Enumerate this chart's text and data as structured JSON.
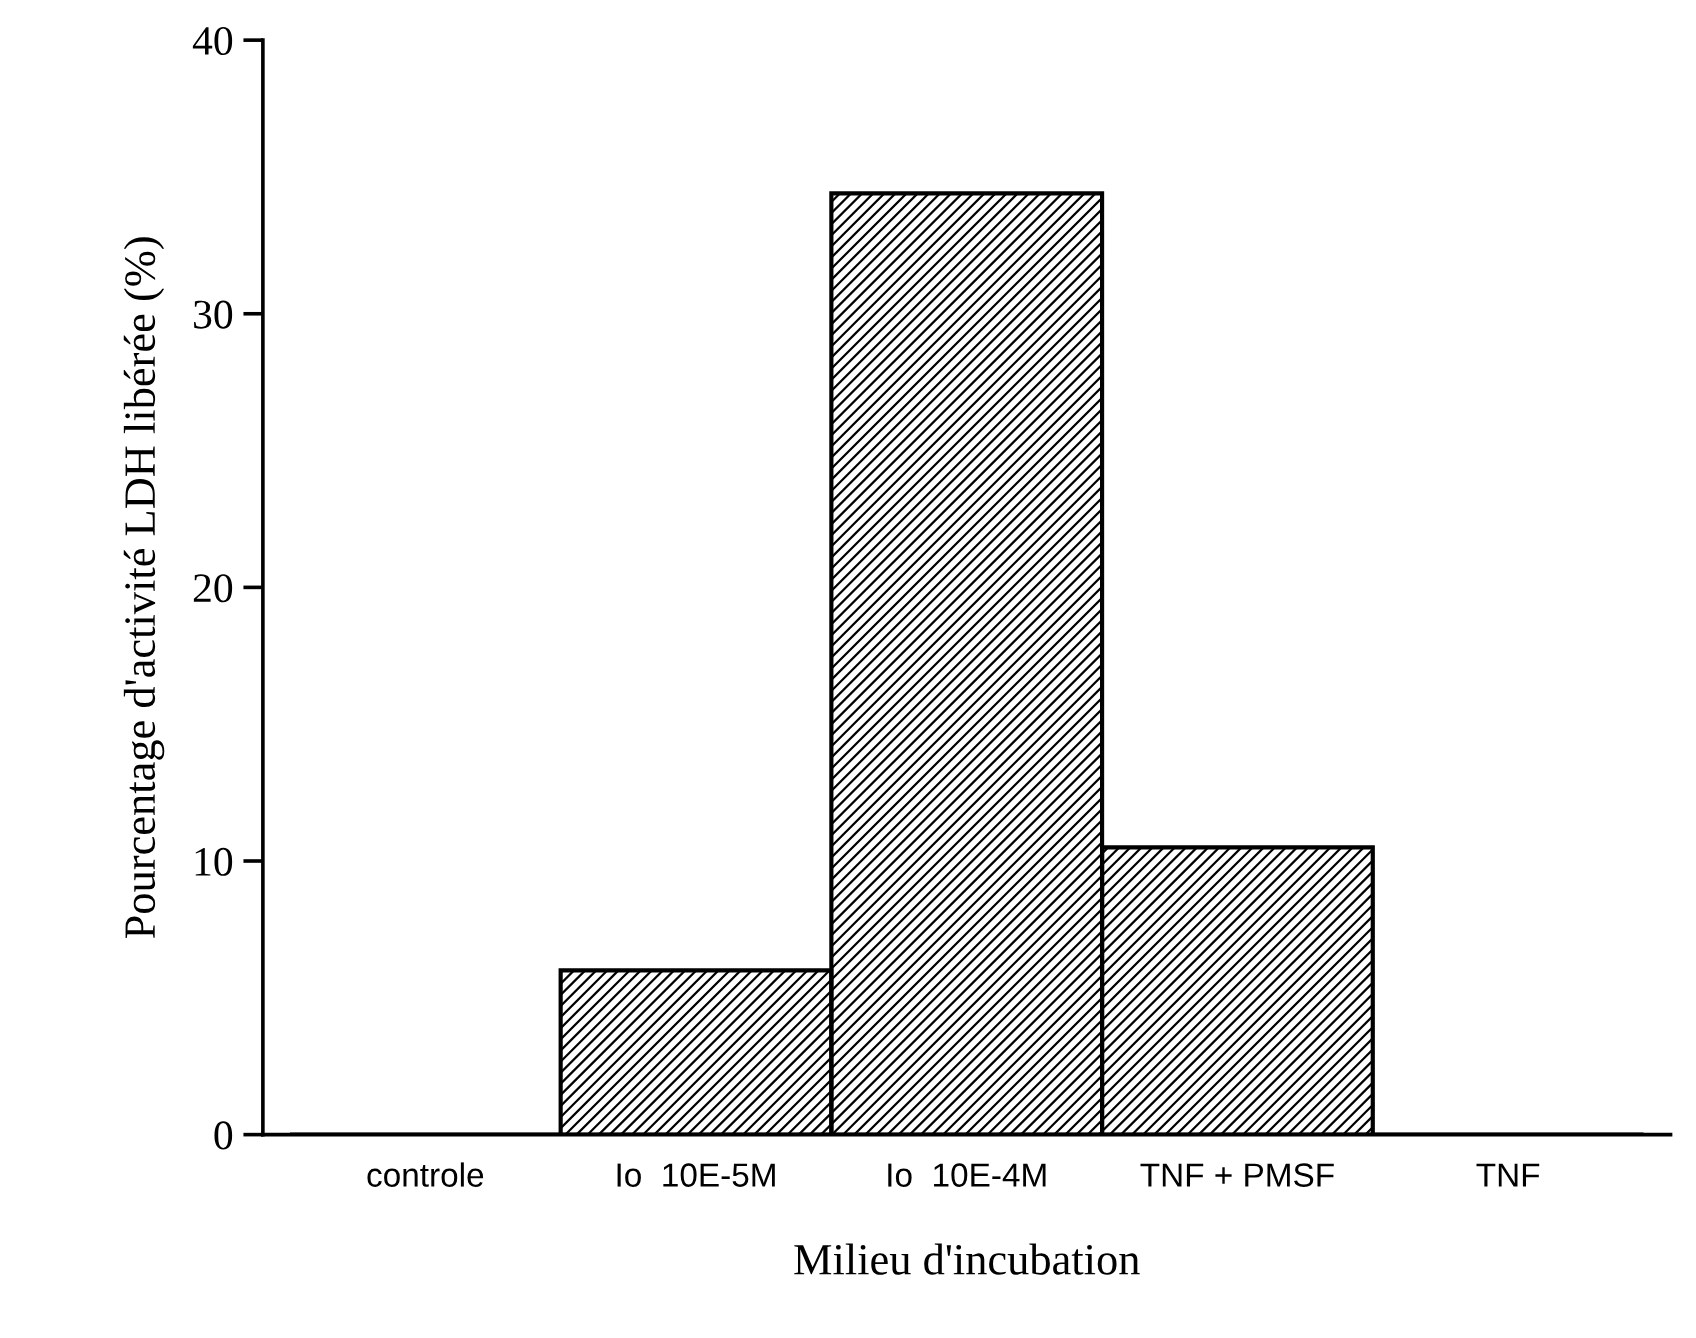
{
  "chart_data": {
    "type": "bar",
    "xlabel": "Milieu d'incubation",
    "ylabel": "Pourcentage d'activité LDH libérée (%)",
    "categories": [
      "controle",
      "Io  10E-5M",
      "Io  10E-4M",
      "TNF + PMSF",
      "TNF"
    ],
    "values": [
      0,
      6.0,
      34.4,
      10.5,
      0
    ],
    "color": "#000000",
    "ylim": [
      0,
      40
    ],
    "yticks": [
      0,
      10,
      20,
      30,
      40
    ],
    "grid": false
  }
}
